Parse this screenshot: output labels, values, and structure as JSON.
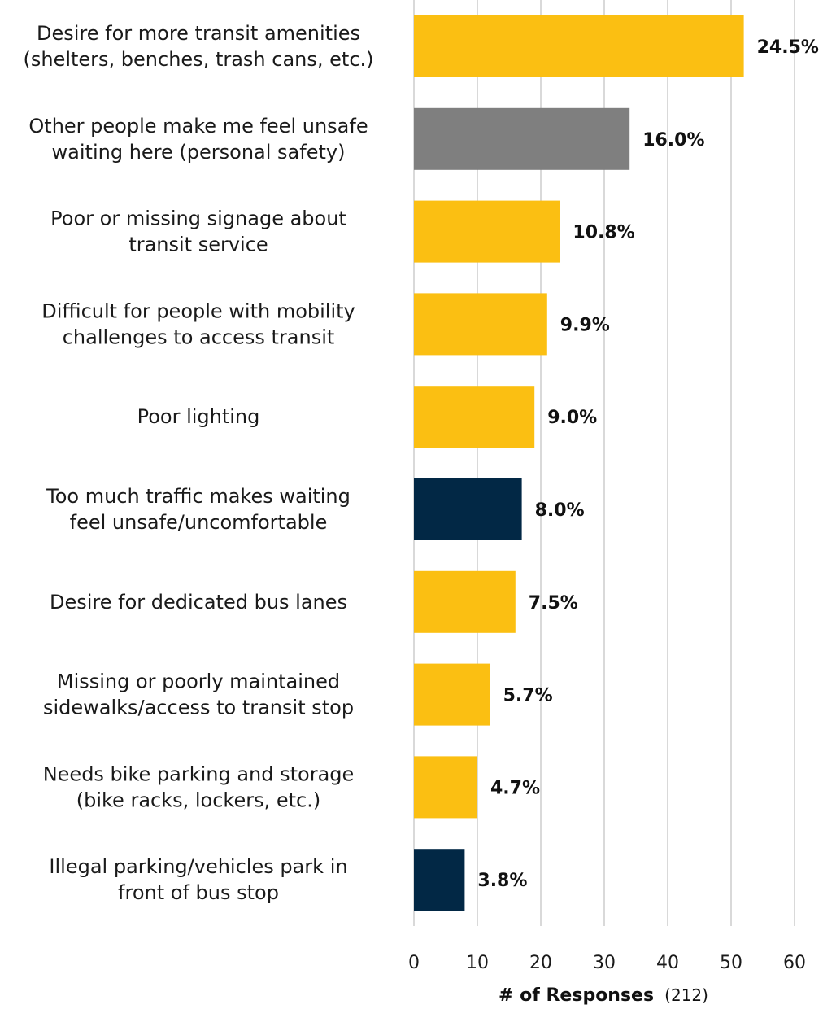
{
  "chart_data": {
    "type": "bar",
    "orientation": "horizontal",
    "categories": [
      [
        "Desire for more transit amenities",
        "(shelters, benches, trash cans, etc.)"
      ],
      [
        "Other people make me feel unsafe",
        "waiting here (personal safety)"
      ],
      [
        "Poor or missing signage about",
        "transit service"
      ],
      [
        "Difficult for people with mobility",
        "challenges to access transit"
      ],
      [
        "Poor lighting"
      ],
      [
        "Too much traffic makes waiting",
        "feel unsafe/uncomfortable"
      ],
      [
        "Desire for dedicated bus lanes"
      ],
      [
        "Missing or poorly maintained",
        "sidewalks/access to transit stop"
      ],
      [
        "Needs bike parking and storage",
        "(bike racks, lockers, etc.)"
      ],
      [
        "Illegal parking/vehicles park in",
        "front of bus stop"
      ]
    ],
    "values": [
      52,
      34,
      23,
      21,
      19,
      17,
      16,
      12,
      10,
      8
    ],
    "data_labels": [
      "24.5%",
      "16.0%",
      "10.8%",
      "9.9%",
      "9.0%",
      "8.0%",
      "7.5%",
      "5.7%",
      "4.7%",
      "3.8%"
    ],
    "bar_colors": [
      "#FBBF12",
      "#7F7F7F",
      "#FBBF12",
      "#FBBF12",
      "#FBBF12",
      "#022845",
      "#FBBF12",
      "#FBBF12",
      "#FBBF12",
      "#022845"
    ],
    "x_ticks": [
      "0",
      "10",
      "20",
      "30",
      "40",
      "50",
      "60"
    ],
    "xlim": [
      0,
      60
    ],
    "xlabel": "# of Responses",
    "xlabel_suffix": "(212)",
    "grid": "vertical"
  },
  "colors": {
    "accent_yellow": "#FBBF12",
    "gray": "#7F7F7F",
    "navy": "#022845",
    "gridline": "#D9D9D9"
  }
}
